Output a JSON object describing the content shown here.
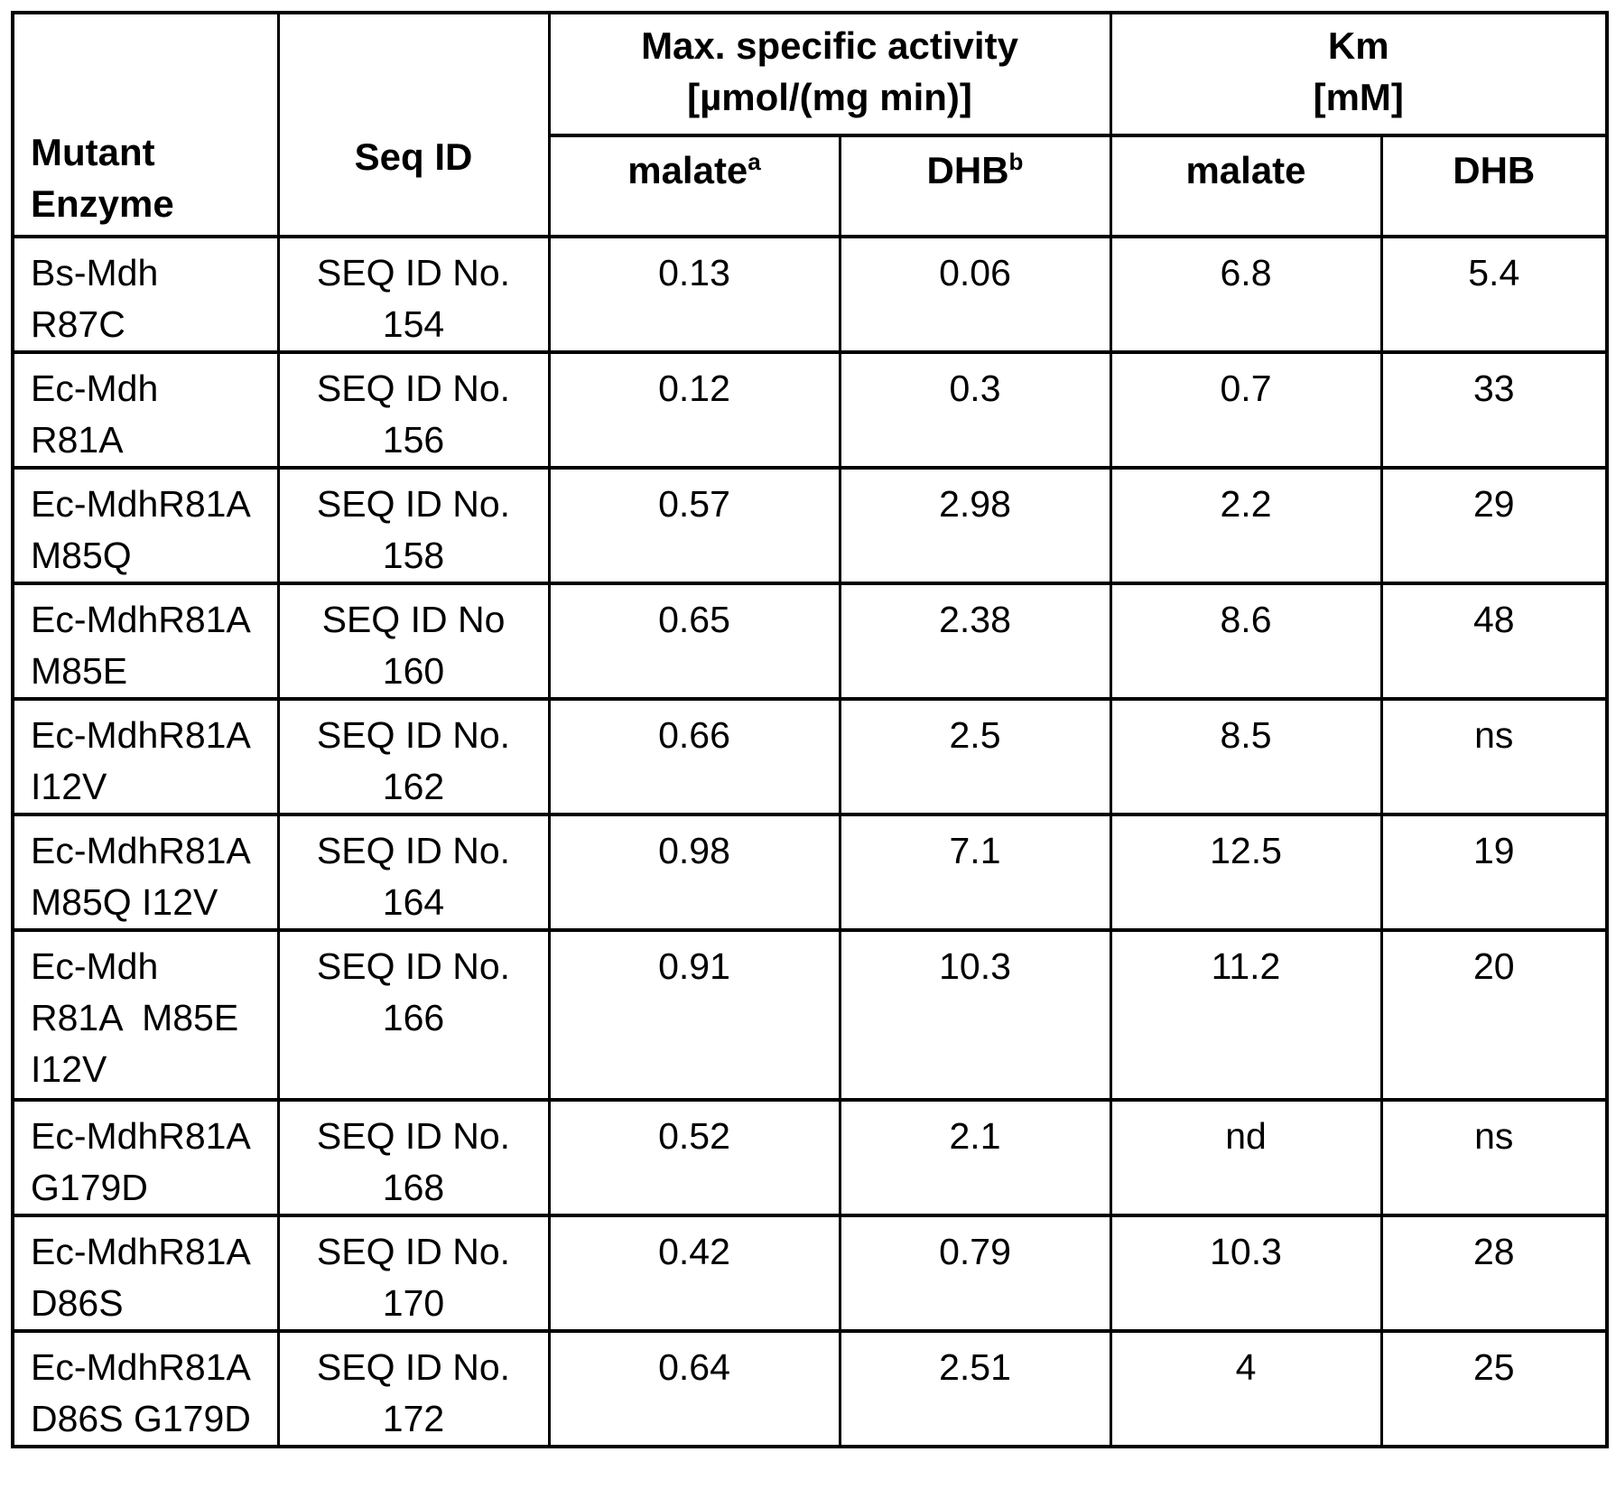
{
  "table": {
    "headers": {
      "mutant_enzyme": "Mutant\nEnzyme",
      "seq_id": "Seq ID",
      "group_activity": "Max. specific activity\n[µmol/(mg min)]",
      "group_km": "Km\n[mM]",
      "sub": [
        {
          "label": "malate",
          "sup": "a"
        },
        {
          "label": "DHB",
          "sup": "b"
        },
        {
          "label": "malate",
          "sup": ""
        },
        {
          "label": "DHB",
          "sup": ""
        }
      ]
    },
    "rows": [
      {
        "enzyme": "Bs-Mdh\nR87C",
        "seq": "SEQ ID No.\n154",
        "act_malate": "0.13",
        "act_dhb": "0.06",
        "km_malate": "6.8",
        "km_dhb": "5.4"
      },
      {
        "enzyme": "Ec-Mdh\nR81A",
        "seq": "SEQ ID No.\n156",
        "act_malate": "0.12",
        "act_dhb": "0.3",
        "km_malate": "0.7",
        "km_dhb": "33"
      },
      {
        "enzyme": "Ec-MdhR81A\nM85Q",
        "seq": "SEQ ID No.\n158",
        "act_malate": "0.57",
        "act_dhb": "2.98",
        "km_malate": "2.2",
        "km_dhb": "29"
      },
      {
        "enzyme": "Ec-MdhR81A\nM85E",
        "seq": "SEQ ID No\n160",
        "act_malate": "0.65",
        "act_dhb": "2.38",
        "km_malate": "8.6",
        "km_dhb": "48"
      },
      {
        "enzyme": "Ec-MdhR81A\nI12V",
        "seq": "SEQ ID No.\n162",
        "act_malate": "0.66",
        "act_dhb": "2.5",
        "km_malate": "8.5",
        "km_dhb": "ns"
      },
      {
        "enzyme": "Ec-MdhR81A\nM85Q I12V",
        "seq": "SEQ ID No.\n164",
        "act_malate": "0.98",
        "act_dhb": "7.1",
        "km_malate": "12.5",
        "km_dhb": "19"
      },
      {
        "enzyme": "Ec-Mdh\nR81A  M85E\nI12V",
        "seq": "SEQ ID No.\n166",
        "act_malate": "0.91",
        "act_dhb": "10.3",
        "km_malate": "11.2",
        "km_dhb": "20"
      },
      {
        "enzyme": "Ec-MdhR81A\nG179D",
        "seq": "SEQ ID No.\n168",
        "act_malate": "0.52",
        "act_dhb": "2.1",
        "km_malate": "nd",
        "km_dhb": "ns"
      },
      {
        "enzyme": "Ec-MdhR81A\nD86S",
        "seq": "SEQ ID No.\n170",
        "act_malate": "0.42",
        "act_dhb": "0.79",
        "km_malate": "10.3",
        "km_dhb": "28"
      },
      {
        "enzyme": "Ec-MdhR81A\nD86S G179D",
        "seq": "SEQ ID No.\n172",
        "act_malate": "0.64",
        "act_dhb": "2.51",
        "km_malate": "4",
        "km_dhb": "25"
      }
    ]
  }
}
